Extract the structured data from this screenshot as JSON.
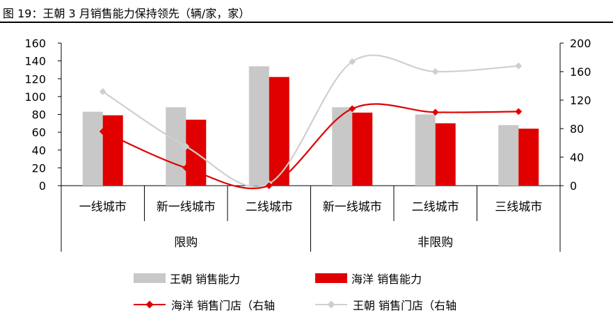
{
  "title": "图 19：王朝 3 月销售能力保持领先（辆/家，家）",
  "colors": {
    "wangchao_capacity": "#c8c8c8",
    "haiyang_capacity": "#e00000",
    "haiyang_stores": "#e00000",
    "wangchao_stores": "#cfcfcf"
  },
  "chart_data": {
    "type": "bar",
    "categories": [
      "一线城市",
      "新一线城市",
      "二线城市",
      "新一线城市",
      "二线城市",
      "三线城市"
    ],
    "groups": [
      {
        "label": "限购",
        "categories": [
          "一线城市",
          "新一线城市",
          "二线城市"
        ]
      },
      {
        "label": "非限购",
        "categories": [
          "新一线城市",
          "二线城市",
          "三线城市"
        ]
      }
    ],
    "y_left": {
      "ticks": [
        "0",
        "20",
        "40",
        "60",
        "80",
        "100",
        "120",
        "140",
        "160"
      ],
      "ylim": [
        0,
        160
      ]
    },
    "y_right": {
      "ticks": [
        "0",
        "40",
        "80",
        "120",
        "160",
        "200"
      ],
      "ylim": [
        0,
        200
      ]
    },
    "series": [
      {
        "name": "王朝 销售能力",
        "type": "bar",
        "axis": "left",
        "values": [
          83,
          88,
          134,
          88,
          80,
          68
        ]
      },
      {
        "name": "海洋 销售能力",
        "type": "bar",
        "axis": "left",
        "values": [
          79,
          74,
          122,
          82,
          70,
          64
        ]
      },
      {
        "name": "海洋 销售门店（右轴",
        "type": "line",
        "axis": "right",
        "smooth": true,
        "values": [
          76,
          25,
          0,
          108,
          103,
          104
        ]
      },
      {
        "name": "王朝 销售门店（右轴",
        "type": "line",
        "axis": "right",
        "smooth": true,
        "values": [
          132,
          55,
          3,
          174,
          160,
          168
        ]
      }
    ],
    "legend_position": "bottom"
  }
}
